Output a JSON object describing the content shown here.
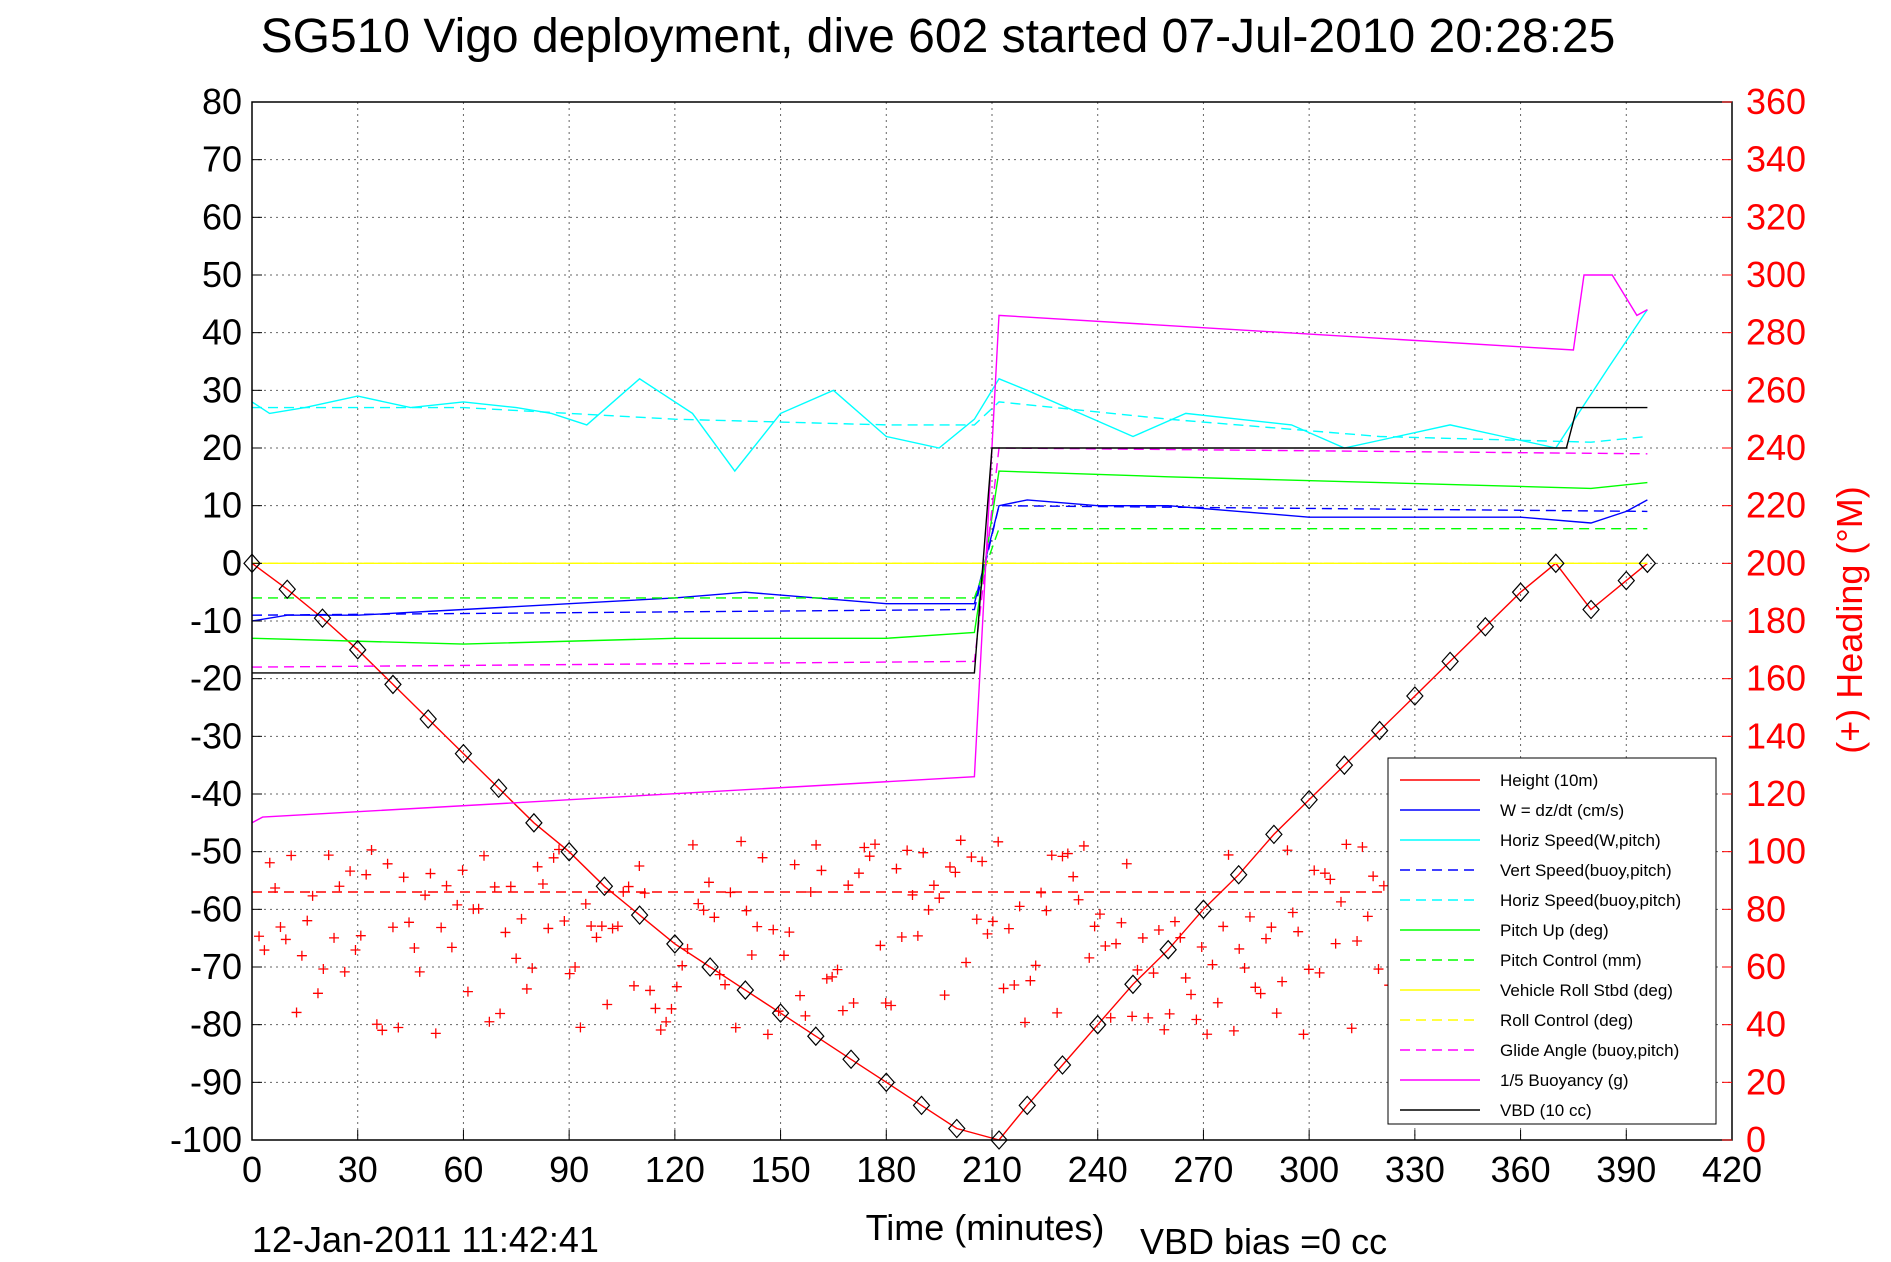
{
  "chart_data": {
    "type": "line",
    "title": "SG510 Vigo deployment, dive 602 started 07-Jul-2010 20:28:25",
    "xlabel": "Time (minutes)",
    "ylabel": "",
    "y2label": "(+) Heading (°M)",
    "xlim": [
      0,
      420
    ],
    "ylim": [
      -100,
      80
    ],
    "y2lim": [
      0,
      360
    ],
    "xticks": [
      "0",
      "30",
      "60",
      "90",
      "120",
      "150",
      "180",
      "210",
      "240",
      "270",
      "300",
      "330",
      "360",
      "390",
      "420"
    ],
    "yticks": [
      "80",
      "70",
      "60",
      "50",
      "40",
      "30",
      "20",
      "10",
      "0",
      "-10",
      "-20",
      "-30",
      "-40",
      "-50",
      "-60",
      "-70",
      "-80",
      "-90",
      "-100"
    ],
    "y2ticks": [
      "360",
      "340",
      "320",
      "300",
      "280",
      "260",
      "240",
      "220",
      "200",
      "180",
      "160",
      "140",
      "120",
      "100",
      "80",
      "60",
      "40",
      "20",
      "0"
    ],
    "grid": true,
    "legend_position": "bottom-right",
    "footer_date": "12-Jan-2011 11:42:41",
    "footer_note": "VBD bias =0 cc",
    "series": [
      {
        "name": "Height (10m)",
        "color": "#ff0000",
        "style": "solid",
        "x": [
          0,
          10,
          20,
          30,
          40,
          50,
          60,
          70,
          80,
          90,
          100,
          110,
          120,
          130,
          140,
          150,
          160,
          170,
          180,
          190,
          200,
          212,
          220,
          230,
          240,
          250,
          260,
          270,
          280,
          290,
          300,
          310,
          320,
          330,
          340,
          350,
          360,
          370,
          380,
          390,
          396
        ],
        "y": [
          0,
          -4.5,
          -9.5,
          -15,
          -21,
          -27,
          -33,
          -39,
          -45,
          -50,
          -56,
          -61,
          -66,
          -70,
          -74,
          -78,
          -82,
          -86,
          -90,
          -94,
          -98,
          -100,
          -94,
          -87,
          -80,
          -73,
          -67,
          -60,
          -54,
          -47,
          -41,
          -35,
          -29,
          -23,
          -17,
          -11,
          -5,
          0,
          -8,
          -3,
          0
        ]
      },
      {
        "name": "W = dz/dt (cm/s)",
        "color": "#0000ff",
        "style": "solid",
        "x": [
          0,
          10,
          30,
          60,
          90,
          120,
          140,
          160,
          180,
          205,
          212,
          220,
          240,
          260,
          280,
          300,
          320,
          340,
          360,
          380,
          390,
          396
        ],
        "y": [
          -10,
          -9,
          -9,
          -8,
          -7,
          -6,
          -5,
          -6,
          -7,
          -7,
          10,
          11,
          10,
          10,
          9,
          8,
          8,
          8,
          8,
          7,
          9,
          11
        ]
      },
      {
        "name": "Horiz Speed(W,pitch)",
        "color": "#00ffff",
        "style": "solid",
        "x": [
          0,
          5,
          15,
          30,
          45,
          60,
          75,
          85,
          95,
          110,
          125,
          137,
          150,
          165,
          180,
          195,
          205,
          212,
          220,
          235,
          250,
          265,
          280,
          295,
          310,
          325,
          340,
          355,
          370,
          385,
          396
        ],
        "y": [
          28,
          26,
          27,
          29,
          27,
          28,
          27,
          26,
          24,
          32,
          26,
          16,
          26,
          30,
          22,
          20,
          25,
          32,
          30,
          26,
          22,
          26,
          25,
          24,
          20,
          22,
          24,
          22,
          20,
          34,
          44
        ]
      },
      {
        "name": "Vert Speed(buoy,pitch)",
        "color": "#0000ff",
        "style": "dashed",
        "x": [
          0,
          205,
          212,
          396
        ],
        "y": [
          -9,
          -8,
          10,
          9
        ]
      },
      {
        "name": "Horiz Speed(buoy,pitch)",
        "color": "#00ffff",
        "style": "dashed",
        "x": [
          0,
          60,
          120,
          180,
          205,
          212,
          260,
          320,
          380,
          396
        ],
        "y": [
          27,
          27,
          25,
          24,
          24,
          28,
          25,
          22,
          21,
          22
        ]
      },
      {
        "name": "Pitch Up (deg)",
        "color": "#00ff00",
        "style": "solid",
        "x": [
          0,
          60,
          120,
          180,
          205,
          212,
          260,
          320,
          380,
          396
        ],
        "y": [
          -13,
          -14,
          -13,
          -13,
          -12,
          16,
          15,
          14,
          13,
          14
        ]
      },
      {
        "name": "Pitch Control (mm)",
        "color": "#00ff00",
        "style": "dashed",
        "x": [
          0,
          205,
          212,
          396
        ],
        "y": [
          -6,
          -6,
          6,
          6
        ]
      },
      {
        "name": "Vehicle Roll Stbd (deg)",
        "color": "#ffff00",
        "style": "solid",
        "x": [
          0,
          205,
          212,
          396
        ],
        "y": [
          0,
          0,
          0,
          0
        ]
      },
      {
        "name": "Roll Control (deg)",
        "color": "#ffff00",
        "style": "dashed",
        "x": [
          0,
          205,
          212,
          396
        ],
        "y": [
          0,
          0,
          0,
          0
        ]
      },
      {
        "name": "Glide Angle (buoy,pitch)",
        "color": "#ff00ff",
        "style": "dashed",
        "x": [
          0,
          205,
          212,
          396
        ],
        "y": [
          -18,
          -17,
          20,
          19
        ]
      },
      {
        "name": "1/5 Buoyancy (g)",
        "color": "#ff00ff",
        "style": "solid",
        "x": [
          0,
          3,
          205,
          212,
          375,
          378,
          386,
          393,
          396
        ],
        "y": [
          -45,
          -44,
          -37,
          43,
          37,
          50,
          50,
          43,
          44
        ]
      },
      {
        "name": "VBD (10 cc)",
        "color": "#000000",
        "style": "solid",
        "x": [
          0,
          205,
          210,
          373,
          376,
          396
        ],
        "y": [
          -19,
          -19,
          20,
          20,
          27,
          27
        ]
      },
      {
        "name": "",
        "color": "#ff0000",
        "style": "dashed",
        "x": [
          0,
          396
        ],
        "y": [
          -57,
          -57
        ]
      }
    ]
  }
}
